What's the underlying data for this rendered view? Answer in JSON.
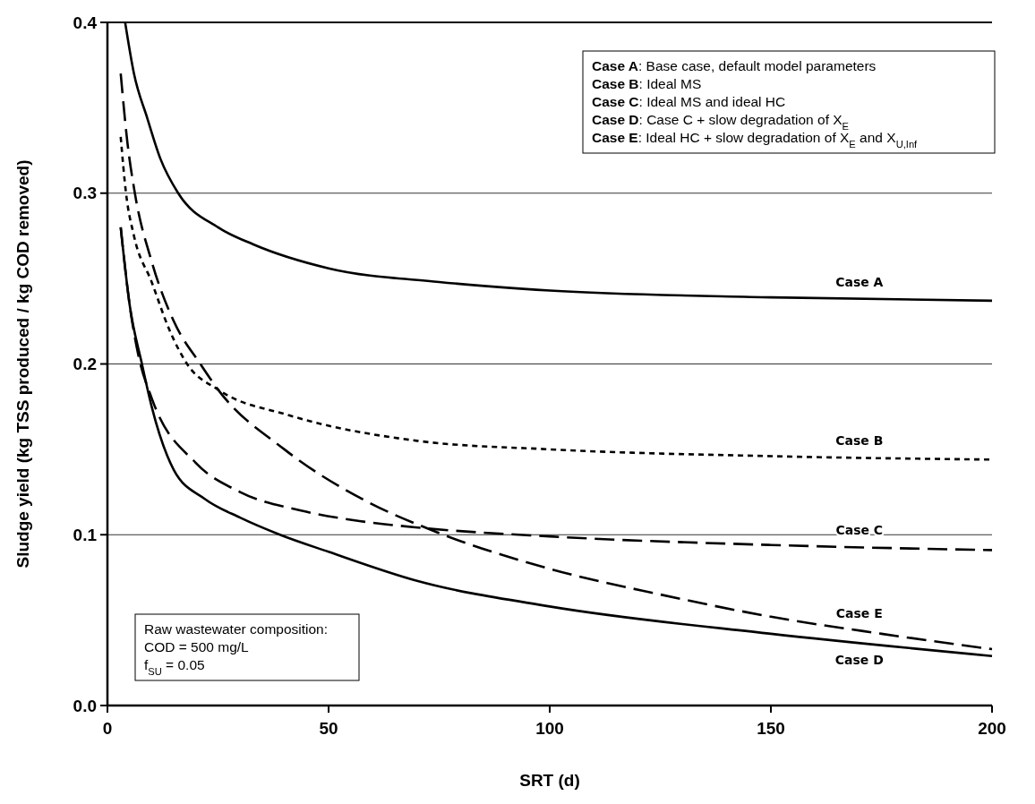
{
  "chart_data": {
    "type": "line",
    "xlabel": "SRT (d)",
    "ylabel": "Sludge yield (kg TSS produced / kg COD removed)",
    "xlim": [
      0,
      200
    ],
    "ylim": [
      0,
      0.4
    ],
    "xticks": [
      0,
      50,
      100,
      150,
      200
    ],
    "yticks": [
      {
        "value": 0,
        "label": "0.0"
      },
      0.1,
      0.2,
      0.3,
      0.4
    ],
    "grid": "y",
    "marker": "none",
    "series": [
      {
        "name": "Case A",
        "color": "#000000",
        "line_style": "solid",
        "x": [
          4,
          6,
          9,
          12,
          16,
          25,
          33,
          50,
          75,
          100,
          150,
          200
        ],
        "values": [
          0.4,
          0.37,
          0.344,
          0.32,
          0.3,
          0.28,
          0.27,
          0.256,
          0.248,
          0.243,
          0.239,
          0.237
        ]
      },
      {
        "name": "Case B",
        "color": "#000000",
        "line_style": "dotted",
        "x": [
          3,
          4.2,
          6,
          10,
          14,
          18,
          25,
          41,
          70,
          100,
          150,
          200
        ],
        "values": [
          0.333,
          0.3,
          0.275,
          0.248,
          0.22,
          0.2,
          0.185,
          0.17,
          0.155,
          0.15,
          0.146,
          0.144
        ]
      },
      {
        "name": "Case C",
        "color": "#000000",
        "line_style": "dashed",
        "x": [
          3,
          5,
          7,
          10,
          20,
          30,
          44,
          57,
          71,
          100,
          150,
          200
        ],
        "values": [
          0.28,
          0.235,
          0.205,
          0.18,
          0.142,
          0.125,
          0.114,
          0.108,
          0.104,
          0.099,
          0.094,
          0.091
        ]
      },
      {
        "name": "Case E",
        "color": "#000000",
        "line_style": "dashed",
        "x": [
          3,
          4.5,
          6.2,
          10,
          15,
          21,
          25,
          40,
          59,
          73,
          100,
          125,
          150,
          175,
          200
        ],
        "values": [
          0.37,
          0.33,
          0.3,
          0.26,
          0.225,
          0.2,
          0.185,
          0.15,
          0.119,
          0.103,
          0.08,
          0.065,
          0.052,
          0.042,
          0.033
        ]
      },
      {
        "name": "Case D",
        "color": "#000000",
        "line_style": "solid",
        "x": [
          3,
          5,
          7.8,
          10,
          15,
          22,
          30,
          39,
          50,
          70,
          100,
          150,
          200
        ],
        "values": [
          0.28,
          0.235,
          0.2,
          0.175,
          0.138,
          0.121,
          0.11,
          0.1,
          0.09,
          0.073,
          0.058,
          0.042,
          0.029
        ]
      }
    ],
    "annotations": [
      "Case A: Base case, default model parameters\nCase B: Ideal MS\nCase C: Ideal MS and ideal HC\nCase D: Case C + slow degradation of X$_{E}$\nCase E: Ideal HC + slow degradation of X$_{E}$ and X$_{U,Inf}$",
      "Raw wastewater composition:\nCOD = 500 mg/L\nf$_{SU}$ = 0.05"
    ]
  }
}
